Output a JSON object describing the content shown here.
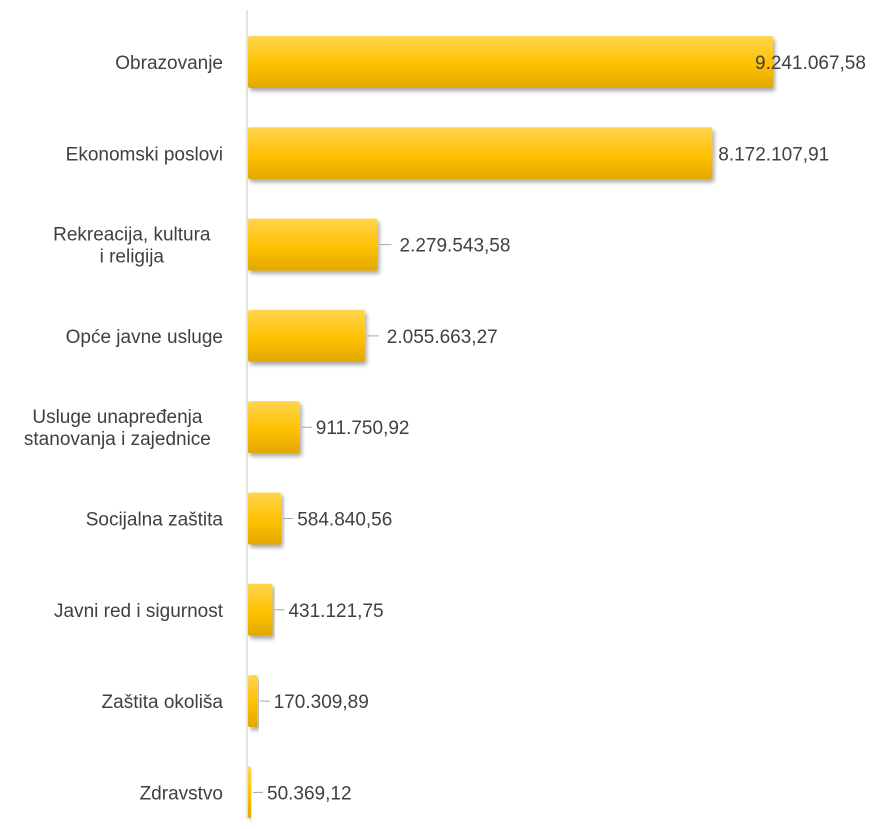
{
  "chart_data": {
    "type": "bar",
    "orientation": "horizontal",
    "title": "",
    "xlabel": "",
    "ylabel": "",
    "grid": false,
    "legend": "none",
    "categories": [
      "Obrazovanje",
      "Ekonomski poslovi",
      "Rekreacija, kultura i religija",
      "Opće javne usluge",
      "Usluge unapređenja stanovanja i zajednice",
      "Socijalna zaštita",
      "Javni red i sigurnost",
      "Zaštita okoliša",
      "Zdravstvo"
    ],
    "category_label_lines": [
      [
        "Obrazovanje"
      ],
      [
        "Ekonomski poslovi"
      ],
      [
        "Rekreacija, kultura",
        "i religija"
      ],
      [
        "Opće javne usluge"
      ],
      [
        "Usluge unapređenja",
        "stanovanja i zajednice"
      ],
      [
        "Socijalna zaštita"
      ],
      [
        "Javni red i sigurnost"
      ],
      [
        "Zaštita okoliša"
      ],
      [
        "Zdravstvo"
      ]
    ],
    "values": [
      9241067.58,
      8172107.91,
      2279543.58,
      2055663.27,
      911750.92,
      584840.56,
      431121.75,
      170309.89,
      50369.12
    ],
    "value_labels": [
      "9.241.067,58",
      "8.172.107,91",
      "2.279.543,58",
      "2.055.663,27",
      "911.750,92",
      "584.840,56",
      "431.121,75",
      "170.309,89",
      "50.369,12"
    ],
    "xlim": [
      0,
      9241067.58
    ],
    "colors": {
      "bar_light": "#ffd54f",
      "bar_mid": "#ffc000",
      "bar_dark": "#e0a800",
      "bar_shadow": "#bdbdbd",
      "axis": "#d9d9d9",
      "leader": "#a6a6a6",
      "text": "#404040"
    }
  }
}
